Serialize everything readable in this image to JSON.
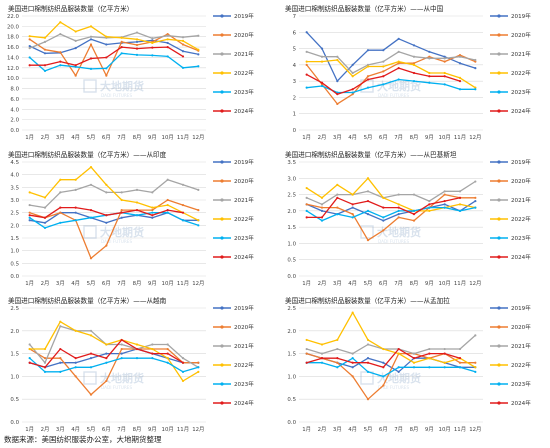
{
  "source_note": "数据来源：美国纺织服装办公室，大地期货整理",
  "watermark": {
    "cn": "大地期货",
    "en": "DADI FUTURES"
  },
  "series_style": [
    {
      "name": "2019年",
      "color": "#4472c4"
    },
    {
      "name": "2020年",
      "color": "#ed7d31"
    },
    {
      "name": "2021年",
      "color": "#a5a5a5"
    },
    {
      "name": "2022年",
      "color": "#ffc000"
    },
    {
      "name": "2023年",
      "color": "#00b0f0"
    },
    {
      "name": "2024年",
      "color": "#e11b1b"
    }
  ],
  "chart_data": [
    {
      "type": "line",
      "title": "美国进口棉制纺织品服装数量（亿平方米）",
      "categories": [
        "1月",
        "2月",
        "3月",
        "4月",
        "5月",
        "6月",
        "7月",
        "8月",
        "9月",
        "10月",
        "11月",
        "12月"
      ],
      "ylim": [
        0,
        22
      ],
      "yticks": [
        0,
        2,
        4,
        6,
        8,
        10,
        12,
        14,
        16,
        18,
        20,
        22
      ],
      "decimals": 1,
      "grid": true,
      "legend_position": "right",
      "series": [
        {
          "name": "2019年",
          "values": [
            16.2,
            14.8,
            14.9,
            15.8,
            17.5,
            16.5,
            16.8,
            17.0,
            17.3,
            16.8,
            15.2,
            14.6
          ]
        },
        {
          "name": "2020年",
          "values": [
            17.5,
            15.5,
            15.0,
            10.5,
            16.5,
            10.5,
            17.0,
            16.4,
            17.0,
            18.5,
            16.5,
            15.3
          ]
        },
        {
          "name": "2021年",
          "values": [
            15.8,
            17.0,
            18.5,
            17.2,
            18.0,
            17.8,
            17.9,
            18.8,
            17.7,
            18.2,
            17.9,
            18.2
          ]
        },
        {
          "name": "2022年",
          "values": [
            18.1,
            17.8,
            20.8,
            19.0,
            20.0,
            18.0,
            17.8,
            17.5,
            16.8,
            17.5,
            17.2,
            15.5
          ]
        },
        {
          "name": "2023年",
          "values": [
            14.0,
            11.4,
            12.5,
            12.2,
            11.8,
            11.9,
            14.8,
            14.5,
            14.4,
            14.2,
            12.0,
            12.3
          ]
        },
        {
          "name": "2024年",
          "values": [
            12.5,
            12.5,
            13.2,
            12.5,
            13.8,
            14.0,
            16.0,
            15.7,
            15.9,
            16.0,
            14.2,
            null
          ]
        }
      ]
    },
    {
      "type": "line",
      "title": "美国进口棉制纺织品服装数量（亿平方米）——从中国",
      "categories": [
        "1月",
        "2月",
        "3月",
        "4月",
        "5月",
        "6月",
        "7月",
        "8月",
        "9月",
        "10月",
        "11月",
        "12月"
      ],
      "ylim": [
        0,
        7
      ],
      "yticks": [
        0,
        1,
        2,
        3,
        4,
        5,
        6,
        7
      ],
      "decimals": 0,
      "grid": true,
      "legend_position": "right",
      "series": [
        {
          "name": "2019年",
          "values": [
            6.0,
            5.0,
            3.0,
            4.0,
            4.9,
            4.9,
            5.6,
            5.2,
            4.8,
            4.5,
            4.1,
            3.8
          ]
        },
        {
          "name": "2020年",
          "values": [
            4.0,
            2.8,
            1.6,
            2.2,
            3.3,
            3.6,
            4.1,
            4.1,
            4.5,
            4.2,
            4.6,
            4.2
          ]
        },
        {
          "name": "2021年",
          "values": [
            4.8,
            4.5,
            4.5,
            3.5,
            4.0,
            4.2,
            4.8,
            4.5,
            4.4,
            4.4,
            4.5,
            4.3
          ]
        },
        {
          "name": "2022年",
          "values": [
            4.2,
            4.2,
            4.3,
            3.3,
            3.9,
            3.9,
            4.2,
            4.0,
            3.5,
            3.5,
            3.2,
            2.6
          ]
        },
        {
          "name": "2023年",
          "values": [
            2.6,
            2.7,
            2.3,
            2.3,
            2.6,
            2.8,
            3.1,
            3.0,
            2.9,
            2.8,
            2.5,
            2.5
          ]
        },
        {
          "name": "2024年",
          "values": [
            3.4,
            2.9,
            2.2,
            2.5,
            3.1,
            3.3,
            3.8,
            3.5,
            3.3,
            3.3,
            3.0,
            null
          ]
        }
      ]
    },
    {
      "type": "line",
      "title": "美国进口棉制纺织品服装数量（亿平方米）——从印度",
      "categories": [
        "1月",
        "2月",
        "3月",
        "4月",
        "5月",
        "6月",
        "7月",
        "8月",
        "9月",
        "10月",
        "11月",
        "12月"
      ],
      "ylim": [
        0,
        4.5
      ],
      "yticks": [
        0,
        0.5,
        1.0,
        1.5,
        2.0,
        2.5,
        3.0,
        3.5,
        4.0,
        4.5
      ],
      "decimals": 1,
      "grid": true,
      "legend_position": "right",
      "series": [
        {
          "name": "2019年",
          "values": [
            2.2,
            2.1,
            2.5,
            2.5,
            2.3,
            2.1,
            2.3,
            2.4,
            2.3,
            2.5,
            2.2,
            2.2
          ]
        },
        {
          "name": "2020年",
          "values": [
            2.5,
            2.3,
            2.5,
            2.2,
            0.7,
            1.2,
            2.6,
            2.6,
            2.6,
            3.0,
            2.8,
            2.6
          ]
        },
        {
          "name": "2021年",
          "values": [
            2.8,
            2.7,
            3.3,
            3.4,
            3.6,
            3.3,
            3.3,
            3.4,
            3.3,
            3.8,
            3.6,
            3.4
          ]
        },
        {
          "name": "2022年",
          "values": [
            3.3,
            3.1,
            3.8,
            3.8,
            4.3,
            3.6,
            3.0,
            2.9,
            2.7,
            2.8,
            2.5,
            2.2
          ]
        },
        {
          "name": "2023年",
          "values": [
            2.3,
            1.9,
            2.1,
            2.2,
            2.3,
            2.4,
            2.5,
            2.4,
            2.5,
            2.5,
            2.2,
            2.0
          ]
        },
        {
          "name": "2024年",
          "values": [
            2.4,
            2.3,
            2.7,
            2.7,
            2.6,
            2.4,
            2.5,
            2.6,
            2.4,
            2.6,
            2.5,
            null
          ]
        }
      ]
    },
    {
      "type": "line",
      "title": "美国进口棉制纺织品服装数量（亿平方米）——从巴基斯坦",
      "categories": [
        "1月",
        "2月",
        "3月",
        "4月",
        "5月",
        "6月",
        "7月",
        "8月",
        "9月",
        "10月",
        "11月",
        "12月"
      ],
      "ylim": [
        0,
        3.5
      ],
      "yticks": [
        0,
        0.5,
        1.0,
        1.5,
        2.0,
        2.5,
        3.0,
        3.5
      ],
      "decimals": 1,
      "grid": true,
      "legend_position": "right",
      "series": [
        {
          "name": "2019年",
          "values": [
            2.2,
            2.0,
            1.9,
            2.1,
            1.9,
            1.7,
            1.9,
            2.0,
            2.1,
            2.2,
            2.0,
            2.3
          ]
        },
        {
          "name": "2020年",
          "values": [
            2.2,
            2.1,
            2.1,
            1.9,
            1.1,
            1.4,
            1.8,
            1.7,
            2.1,
            2.5,
            2.4,
            2.4
          ]
        },
        {
          "name": "2021年",
          "values": [
            2.4,
            2.2,
            2.5,
            2.5,
            2.6,
            2.4,
            2.5,
            2.5,
            2.3,
            2.6,
            2.6,
            2.9
          ]
        },
        {
          "name": "2022年",
          "values": [
            2.7,
            2.4,
            2.8,
            2.5,
            3.0,
            2.4,
            2.2,
            2.0,
            2.0,
            2.1,
            2.2,
            2.1
          ]
        },
        {
          "name": "2023年",
          "values": [
            2.0,
            1.7,
            1.9,
            1.8,
            2.0,
            1.8,
            2.0,
            2.0,
            2.1,
            2.1,
            2.0,
            2.1
          ]
        },
        {
          "name": "2024年",
          "values": [
            1.8,
            1.8,
            2.4,
            2.2,
            2.3,
            2.1,
            2.1,
            1.9,
            2.2,
            2.3,
            2.4,
            null
          ]
        }
      ]
    },
    {
      "type": "line",
      "title": "美国进口棉制纺织品服装数量（亿平方米）——从越南",
      "categories": [
        "1月",
        "2月",
        "3月",
        "4月",
        "5月",
        "6月",
        "7月",
        "8月",
        "9月",
        "10月",
        "11月",
        "12月"
      ],
      "ylim": [
        0,
        2.5
      ],
      "yticks": [
        0,
        0.5,
        1.0,
        1.5,
        2.0,
        2.5
      ],
      "decimals": 1,
      "grid": true,
      "legend_position": "right",
      "series": [
        {
          "name": "2019年",
          "values": [
            1.3,
            1.2,
            1.3,
            1.3,
            1.4,
            1.5,
            1.5,
            1.6,
            1.5,
            1.4,
            1.3,
            1.3
          ]
        },
        {
          "name": "2020年",
          "values": [
            1.6,
            1.4,
            1.4,
            1.0,
            0.6,
            0.9,
            1.6,
            1.6,
            1.6,
            1.6,
            1.3,
            1.3
          ]
        },
        {
          "name": "2021年",
          "values": [
            1.7,
            1.3,
            2.1,
            2.0,
            2.0,
            1.7,
            1.7,
            1.6,
            1.7,
            1.7,
            1.4,
            1.2
          ]
        },
        {
          "name": "2022年",
          "values": [
            1.6,
            1.6,
            2.2,
            2.0,
            1.9,
            1.7,
            1.8,
            1.7,
            1.6,
            1.4,
            0.9,
            1.1
          ]
        },
        {
          "name": "2023年",
          "values": [
            1.4,
            1.1,
            1.1,
            1.2,
            1.2,
            1.3,
            1.4,
            1.4,
            1.4,
            1.3,
            1.1,
            1.2
          ]
        },
        {
          "name": "2024年",
          "values": [
            1.3,
            1.2,
            1.6,
            1.4,
            1.5,
            1.4,
            1.8,
            1.6,
            1.5,
            1.5,
            1.3,
            null
          ]
        }
      ]
    },
    {
      "type": "line",
      "title": "美国进口棉制纺织品服装数量（亿平方米）——从孟加拉",
      "categories": [
        "1月",
        "2月",
        "3月",
        "4月",
        "5月",
        "6月",
        "7月",
        "8月",
        "9月",
        "10月",
        "11月",
        "12月"
      ],
      "ylim": [
        0,
        2.5
      ],
      "yticks": [
        0,
        0.5,
        1.0,
        1.5,
        2.0,
        2.5
      ],
      "decimals": 1,
      "grid": true,
      "legend_position": "right",
      "series": [
        {
          "name": "2019年",
          "values": [
            1.5,
            1.4,
            1.3,
            1.2,
            1.4,
            1.3,
            1.1,
            1.4,
            1.4,
            1.3,
            1.2,
            1.2
          ]
        },
        {
          "name": "2020年",
          "values": [
            1.5,
            1.4,
            1.3,
            1.0,
            0.5,
            0.8,
            1.5,
            1.5,
            1.4,
            1.5,
            1.3,
            1.3
          ]
        },
        {
          "name": "2021年",
          "values": [
            1.6,
            1.5,
            1.6,
            1.5,
            1.7,
            1.6,
            1.6,
            1.5,
            1.6,
            1.6,
            1.6,
            1.9
          ]
        },
        {
          "name": "2022年",
          "values": [
            1.8,
            1.7,
            1.8,
            2.4,
            1.8,
            1.6,
            1.5,
            1.3,
            1.4,
            1.3,
            1.4,
            1.2
          ]
        },
        {
          "name": "2023年",
          "values": [
            1.3,
            1.3,
            1.2,
            1.4,
            1.1,
            1.0,
            1.2,
            1.2,
            1.2,
            1.2,
            1.2,
            1.1
          ]
        },
        {
          "name": "2024年",
          "values": [
            1.3,
            1.4,
            1.4,
            1.3,
            1.3,
            1.2,
            1.6,
            1.4,
            1.5,
            1.5,
            1.4,
            null
          ]
        }
      ]
    }
  ]
}
